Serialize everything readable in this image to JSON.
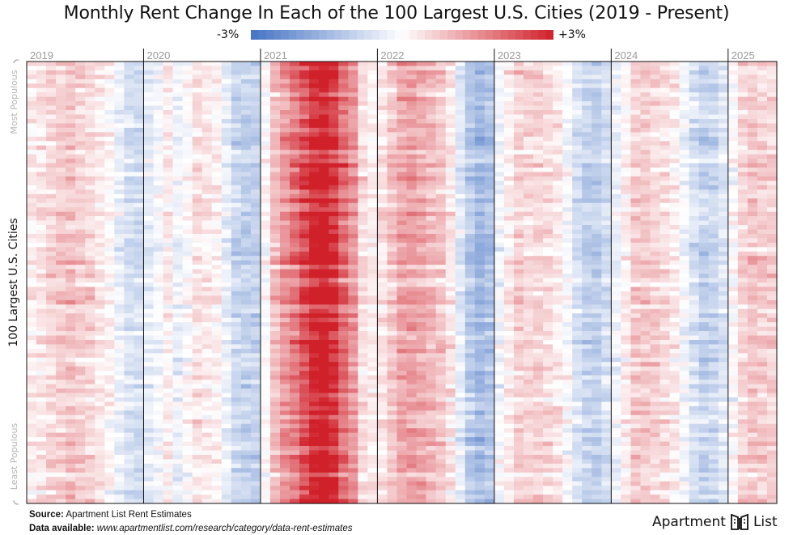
{
  "chart_data": {
    "type": "heatmap",
    "title": "Monthly Rent Change In Each of the 100 Largest U.S. Cities (2019 - Present)",
    "ylabel": "100 Largest U.S. Cities",
    "y_top_label": "Most Populous",
    "y_bottom_label": "Least Populous",
    "legend": {
      "min_label": "-3%",
      "max_label": "+3%",
      "min": -3,
      "max": 3,
      "min_color": "#4472c4",
      "mid_color": "#ffffff",
      "max_color": "#d0202a"
    },
    "x_years": [
      "2019",
      "2020",
      "2021",
      "2022",
      "2023",
      "2024",
      "2025"
    ],
    "months_per_year": 12,
    "months_in_last_year": 5,
    "rows": 100,
    "units": "percent month-over-month rent change",
    "monthly_profile": [
      0.2,
      0.3,
      0.5,
      0.6,
      0.7,
      0.6,
      0.5,
      0.3,
      0.1,
      -0.3,
      -0.6,
      -0.7,
      -0.4,
      -0.2,
      0.2,
      -0.3,
      0.0,
      0.4,
      0.3,
      0.2,
      -0.3,
      -0.8,
      -0.9,
      -0.9,
      0.0,
      0.8,
      1.3,
      1.7,
      2.2,
      2.8,
      3.0,
      2.6,
      1.8,
      1.3,
      0.4,
      0.2,
      0.3,
      0.7,
      1.1,
      1.2,
      1.1,
      0.9,
      0.7,
      0.3,
      -0.4,
      -1.1,
      -1.4,
      -1.2,
      -0.2,
      0.2,
      0.6,
      0.5,
      0.5,
      0.4,
      0.3,
      -0.1,
      -0.6,
      -0.9,
      -1.0,
      -0.7,
      -0.3,
      0.1,
      0.6,
      0.6,
      0.5,
      0.4,
      0.2,
      -0.2,
      -0.6,
      -0.9,
      -0.8,
      -0.5,
      0.0,
      0.5,
      0.7,
      0.6,
      0.5
    ],
    "color_scale": "diverging blue-white-red"
  },
  "footer": {
    "source_label": "Source:",
    "source_text": "Apartment List Rent Estimates",
    "data_label": "Data available:",
    "data_url": "www.apartmentlist.com/research/category/data-rent-estimates"
  },
  "brand": {
    "left": "Apartment",
    "right": "List"
  }
}
